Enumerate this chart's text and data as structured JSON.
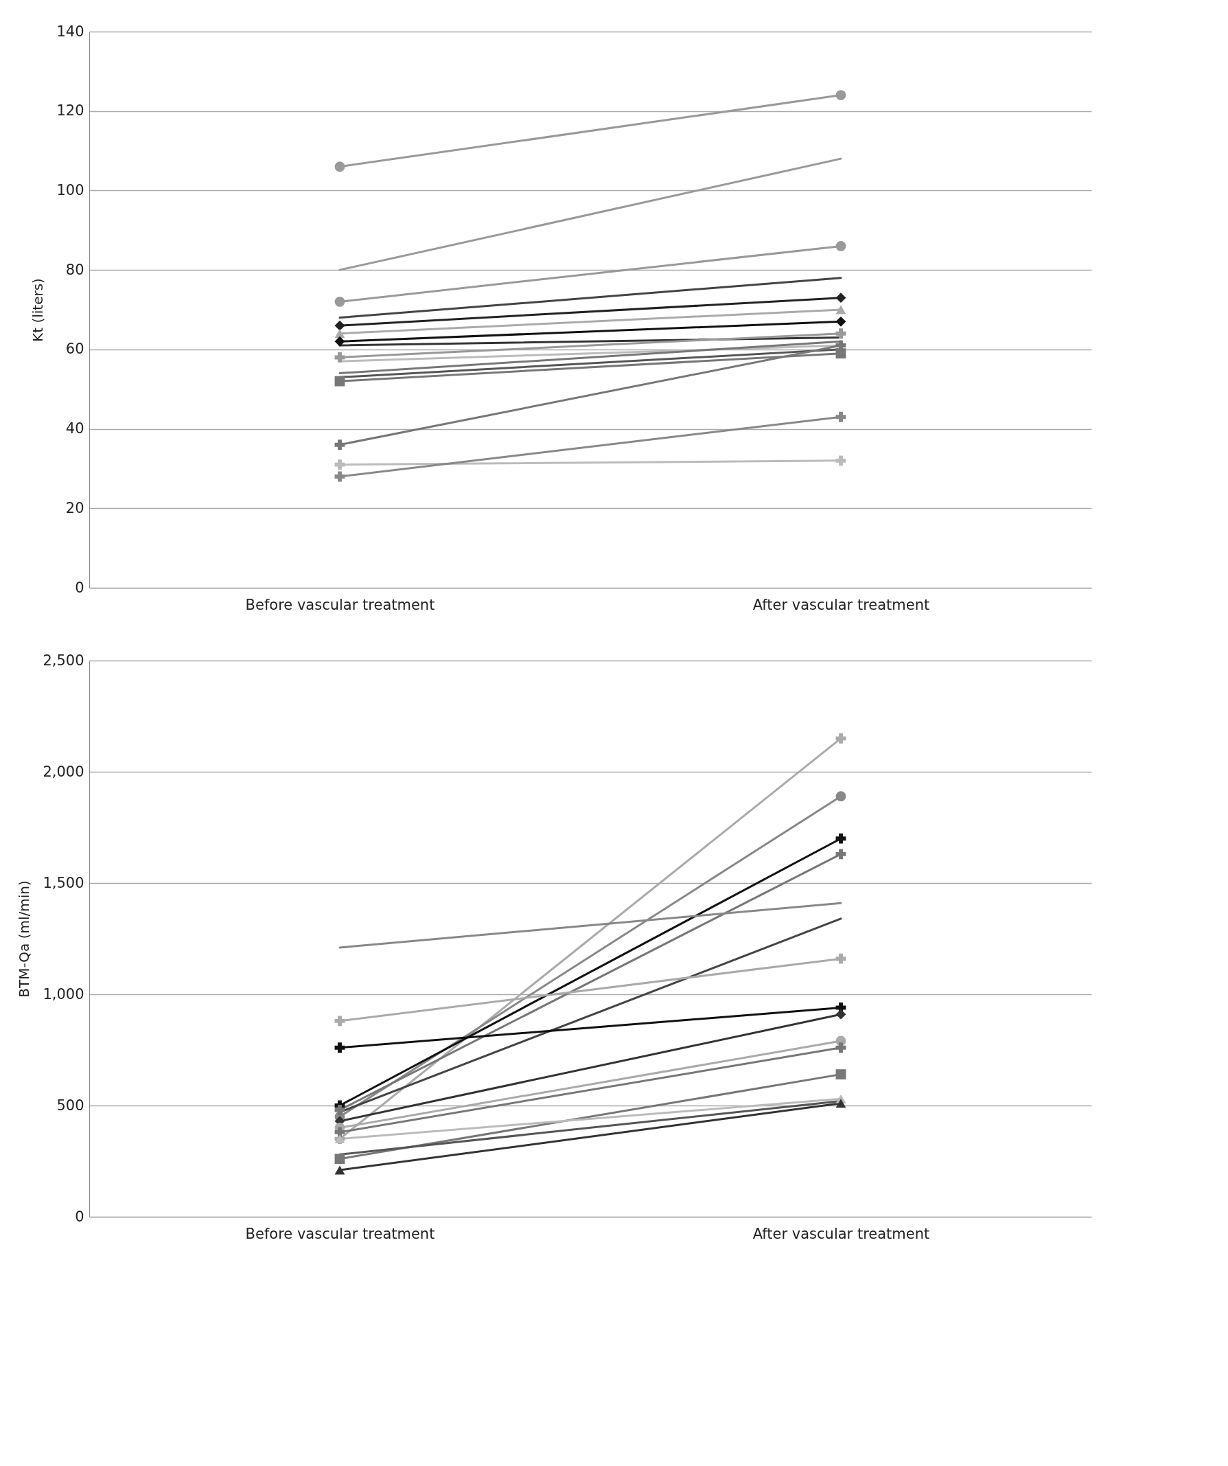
{
  "chart_data": [
    {
      "type": "line",
      "ylabel": "Kt (liters)",
      "categories": [
        "Before vascular treatment",
        "After vascular treatment"
      ],
      "ylim": [
        0,
        140
      ],
      "yticks": [
        0,
        20,
        40,
        60,
        80,
        100,
        120,
        140
      ],
      "grid": "y",
      "legend": false,
      "series": [
        {
          "color": "#999999",
          "marker": "circle",
          "values": [
            106,
            124
          ]
        },
        {
          "color": "#999999",
          "marker": "none",
          "values": [
            80,
            108
          ]
        },
        {
          "color": "#999999",
          "marker": "circle",
          "values": [
            72,
            86
          ]
        },
        {
          "color": "#444444",
          "marker": "none",
          "values": [
            68,
            78
          ]
        },
        {
          "color": "#222222",
          "marker": "diamond",
          "values": [
            66,
            73
          ]
        },
        {
          "color": "#aaaaaa",
          "marker": "triangle",
          "values": [
            64,
            70
          ]
        },
        {
          "color": "#111111",
          "marker": "diamond",
          "values": [
            62,
            67
          ]
        },
        {
          "color": "#333333",
          "marker": "none",
          "values": [
            61,
            63
          ]
        },
        {
          "color": "#999999",
          "marker": "cross",
          "values": [
            58,
            64
          ]
        },
        {
          "color": "#bbbbbb",
          "marker": "none",
          "values": [
            57,
            61
          ]
        },
        {
          "color": "#777777",
          "marker": "none",
          "values": [
            54,
            62
          ]
        },
        {
          "color": "#777777",
          "marker": "square",
          "values": [
            52,
            59
          ]
        },
        {
          "color": "#555555",
          "marker": "none",
          "values": [
            53,
            60
          ]
        },
        {
          "color": "#777777",
          "marker": "cross",
          "values": [
            36,
            61
          ]
        },
        {
          "color": "#bbbbbb",
          "marker": "cross",
          "values": [
            31,
            32
          ]
        },
        {
          "color": "#888888",
          "marker": "cross",
          "values": [
            28,
            43
          ]
        }
      ]
    },
    {
      "type": "line",
      "ylabel": "BTM-Qa (ml/min)",
      "categories": [
        "Before vascular treatment",
        "After vascular treatment"
      ],
      "ylim": [
        0,
        2500
      ],
      "yticks": [
        0,
        500,
        {
          "value": 1000,
          "label": "1,000"
        },
        {
          "value": 1500,
          "label": "1,500"
        },
        {
          "value": 2000,
          "label": "2,000"
        },
        {
          "value": 2500,
          "label": "2,500"
        }
      ],
      "grid": "y",
      "legend": false,
      "series": [
        {
          "color": "#aaaaaa",
          "marker": "cross",
          "values": [
            350,
            2150
          ]
        },
        {
          "color": "#888888",
          "marker": "circle",
          "values": [
            450,
            1890
          ]
        },
        {
          "color": "#111111",
          "marker": "cross",
          "values": [
            500,
            1700
          ]
        },
        {
          "color": "#777777",
          "marker": "cross",
          "values": [
            480,
            1630
          ]
        },
        {
          "color": "#888888",
          "marker": "none",
          "values": [
            1210,
            1410
          ]
        },
        {
          "color": "#444444",
          "marker": "none",
          "values": [
            470,
            1340
          ]
        },
        {
          "color": "#aaaaaa",
          "marker": "cross",
          "values": [
            880,
            1160
          ]
        },
        {
          "color": "#111111",
          "marker": "cross",
          "values": [
            760,
            940
          ]
        },
        {
          "color": "#333333",
          "marker": "diamond",
          "values": [
            430,
            910
          ]
        },
        {
          "color": "#aaaaaa",
          "marker": "circle",
          "values": [
            400,
            790
          ]
        },
        {
          "color": "#777777",
          "marker": "cross",
          "values": [
            380,
            760
          ]
        },
        {
          "color": "#777777",
          "marker": "square",
          "values": [
            260,
            640
          ]
        },
        {
          "color": "#bbbbbb",
          "marker": "triangle",
          "values": [
            350,
            530
          ]
        },
        {
          "color": "#555555",
          "marker": "none",
          "values": [
            280,
            520
          ]
        },
        {
          "color": "#333333",
          "marker": "triangle",
          "values": [
            210,
            510
          ]
        }
      ]
    }
  ]
}
